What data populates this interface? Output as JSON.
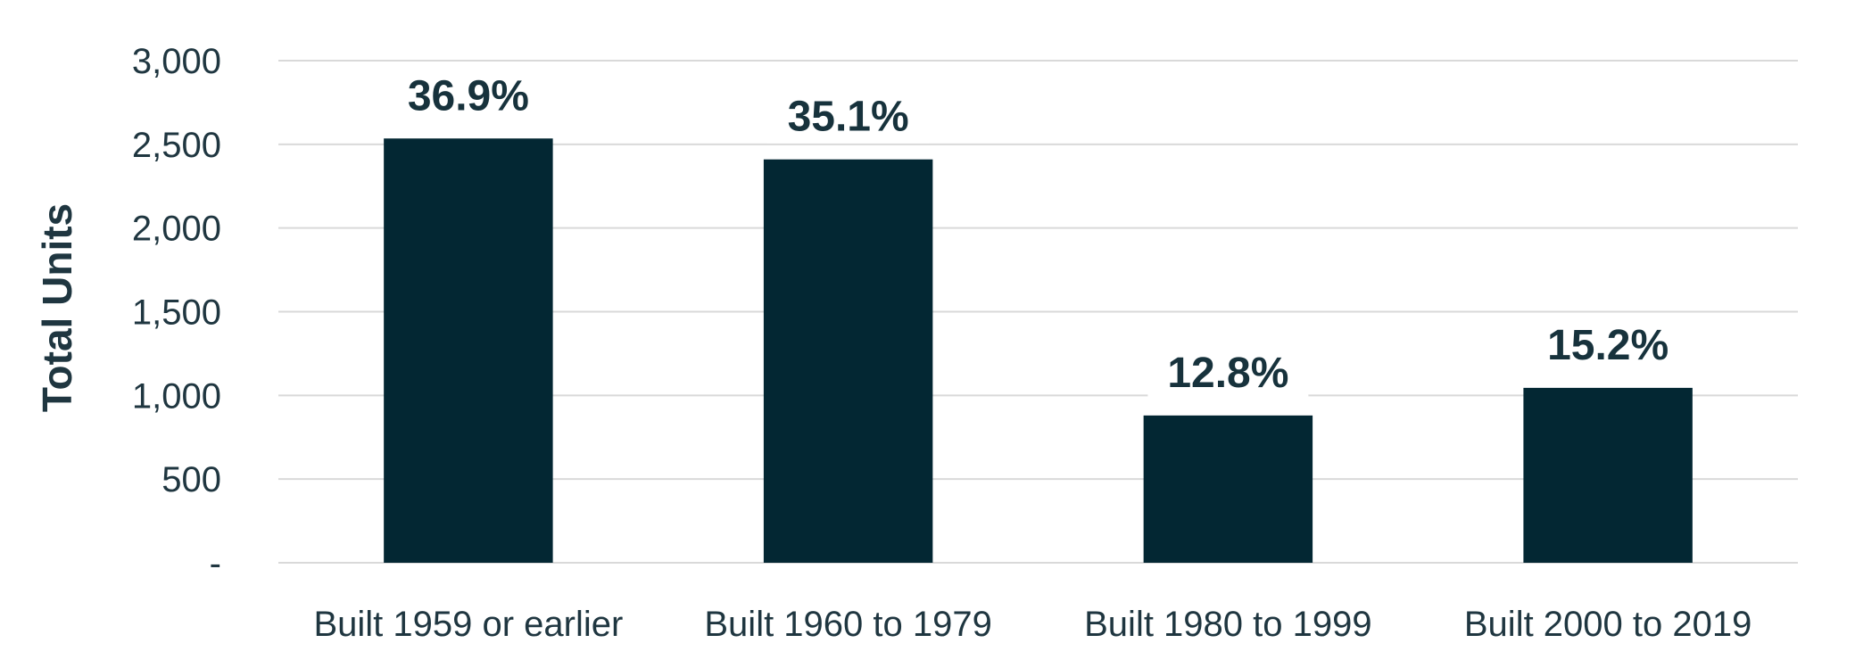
{
  "chart_data": {
    "type": "bar",
    "categories": [
      "Built 1959 or earlier",
      "Built 1960 to 1979",
      "Built 1980 to 1999",
      "Built 2000 to 2019"
    ],
    "values": [
      2535,
      2410,
      880,
      1045
    ],
    "data_labels": [
      "36.9%",
      "35.1%",
      "12.8%",
      "15.2%"
    ],
    "title": "",
    "xlabel": "",
    "ylabel": "Total Units",
    "ylim": [
      0,
      3000
    ],
    "yticks": [
      0,
      500,
      1000,
      1500,
      2000,
      2500,
      3000
    ],
    "ytick_labels": [
      "-",
      "500",
      "1,000",
      "1,500",
      "2,000",
      "2,500",
      "3,000"
    ],
    "grid": true,
    "bar_color": "#032733"
  }
}
